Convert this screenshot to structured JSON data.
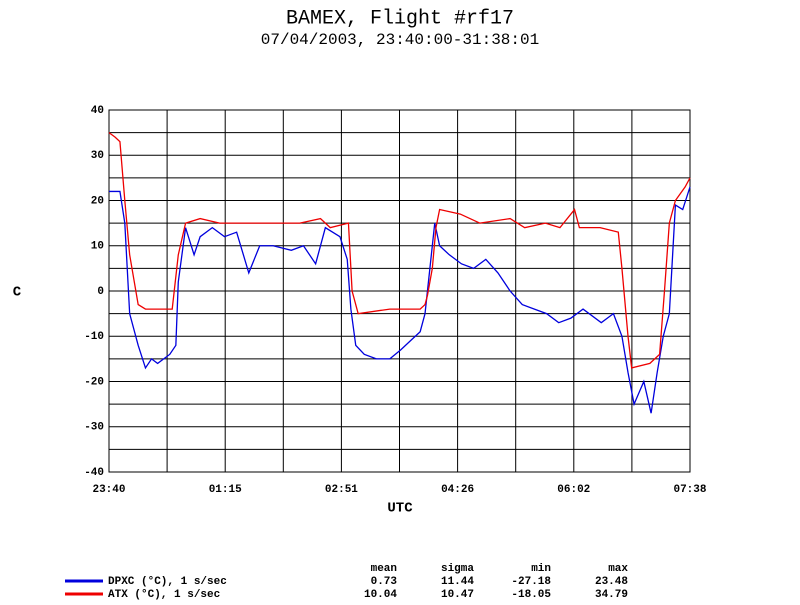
{
  "chart_data": {
    "type": "line",
    "title": "BAMEX, Flight #rf17",
    "subtitle": "07/04/2003, 23:40:00-31:38:01",
    "xlabel": "UTC",
    "ylabel": "C",
    "xlim": [
      0,
      478
    ],
    "xticks": [
      {
        "value": 0,
        "label": "23:40"
      },
      {
        "value": 95.6,
        "label": "01:15"
      },
      {
        "value": 191.2,
        "label": "02:51"
      },
      {
        "value": 286.8,
        "label": "04:26"
      },
      {
        "value": 382.4,
        "label": "06:02"
      },
      {
        "value": 478,
        "label": "07:38"
      }
    ],
    "xminor": [
      47.8,
      143.4,
      239,
      334.6,
      430.2
    ],
    "ylim": [
      -40,
      40
    ],
    "yticks": [
      -40,
      -30,
      -20,
      -10,
      0,
      10,
      20,
      30,
      40
    ],
    "yminor": [
      -35,
      -25,
      -15,
      -5,
      5,
      15,
      25,
      35
    ],
    "grid": true,
    "series": [
      {
        "name": "DPXC (°C), 1 s/sec",
        "color": "#0000dd",
        "x": [
          0,
          9,
          13,
          17,
          24,
          30,
          35,
          40,
          45,
          50,
          55,
          57,
          63,
          70,
          75,
          85,
          95,
          105,
          115,
          124,
          135,
          150,
          160,
          170,
          178,
          190,
          196,
          199,
          203,
          210,
          220,
          231,
          240,
          248,
          256,
          260,
          264,
          268,
          272,
          280,
          290,
          300,
          310,
          320,
          330,
          340,
          350,
          360,
          370,
          380,
          390,
          405,
          415,
          422,
          427,
          432,
          440,
          446,
          451,
          456,
          461,
          466,
          472,
          478
        ],
        "values": [
          22,
          22,
          15,
          -5,
          -12,
          -17,
          -15,
          -16,
          -15,
          -14,
          -12,
          2,
          14,
          8,
          12,
          14,
          12,
          13,
          4,
          10,
          10,
          9,
          10,
          6,
          14,
          12,
          7,
          -4,
          -12,
          -14,
          -15,
          -15,
          -13,
          -11,
          -9,
          -5,
          5,
          15,
          10,
          8,
          6,
          5,
          7,
          4,
          0,
          -3,
          -4,
          -5,
          -7,
          -6,
          -4,
          -7,
          -5,
          -10,
          -18,
          -25,
          -20,
          -27,
          -18,
          -10,
          -5,
          19,
          18,
          23
        ]
      },
      {
        "name": "ATX (°C), 1 s/sec",
        "color": "#ee0000",
        "x": [
          0,
          5,
          9,
          13,
          17,
          24,
          30,
          52,
          57,
          63,
          75,
          91,
          124,
          157,
          174,
          182,
          197,
          200,
          205,
          231,
          239,
          256,
          260,
          262,
          266,
          269,
          272,
          289,
          305,
          330,
          342,
          359,
          371,
          383,
          387,
          404,
          419,
          422,
          427,
          430,
          445,
          453,
          457,
          461,
          466,
          474,
          478
        ],
        "values": [
          35,
          34,
          33,
          20,
          8,
          -3,
          -4,
          -4,
          8,
          15,
          16,
          15,
          15,
          15,
          16,
          14,
          15,
          0,
          -5,
          -4,
          -4,
          -4,
          -3,
          -1,
          5,
          14,
          18,
          17,
          15,
          16,
          14,
          15,
          14,
          18,
          14,
          14,
          13,
          5,
          -10,
          -17,
          -16,
          -14,
          0,
          15,
          20,
          23,
          25
        ]
      }
    ],
    "stats": {
      "columns": [
        "mean",
        "sigma",
        "min",
        "max"
      ],
      "rows": [
        [
          0.73,
          11.44,
          -27.18,
          23.48
        ],
        [
          10.04,
          10.47,
          -18.05,
          34.79
        ]
      ]
    }
  }
}
